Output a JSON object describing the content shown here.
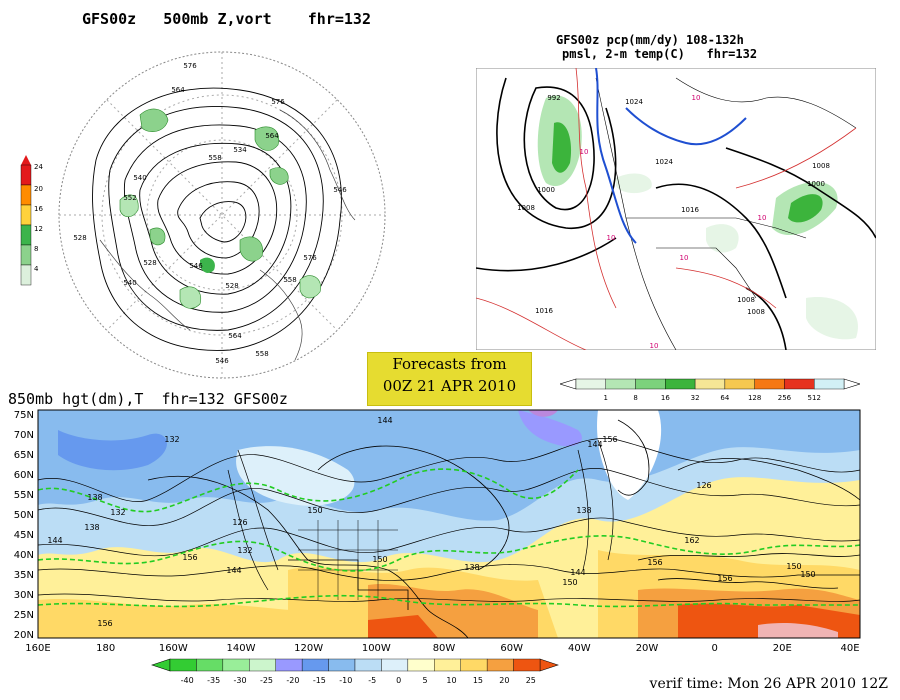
{
  "panels": {
    "polar": {
      "title": "GFS00z   500mb Z,vort    fhr=132",
      "contour_labels": [
        "576",
        "564",
        "540",
        "552",
        "528",
        "534",
        "558",
        "576",
        "564",
        "546",
        "528",
        "540",
        "558",
        "564",
        "558",
        "546",
        "576",
        "528",
        "546"
      ],
      "legend_ticks": [
        "24",
        "20",
        "16",
        "12",
        "8",
        "4"
      ],
      "legend_colors": [
        "#e31a1c",
        "#ff8c00",
        "#ffd23c",
        "#3cb44b",
        "#8cd28c",
        "#dcf0dc"
      ]
    },
    "precip": {
      "title_line1": "GFS00z pcp(mm/dy) 108-132h",
      "title_line2": "pmsl, 2-m temp(C)   fhr=132",
      "pressure_labels": [
        "992",
        "1024",
        "1000",
        "1024",
        "1008",
        "1016",
        "1000",
        "1008",
        "1016",
        "1008",
        "1008"
      ],
      "temp_labels": [
        "10",
        "10",
        "10",
        "10",
        "10",
        "10"
      ],
      "legend_ticks": [
        "1",
        "8",
        "16",
        "32",
        "64",
        "128",
        "256",
        "512"
      ],
      "legend_colors": [
        "#e6f5e6",
        "#b4e6b4",
        "#7cd27c",
        "#3cb43c",
        "#f5e696",
        "#f5c850",
        "#f57814",
        "#e6321e",
        "#d2f0f5"
      ]
    },
    "forecast_box": {
      "line1": "Forecasts from",
      "line2": "00Z 21 APR 2010"
    },
    "bottom": {
      "title": "850mb hgt(dm),T  fhr=132 GFS00z",
      "lat_labels": [
        "75N",
        "70N",
        "65N",
        "60N",
        "55N",
        "50N",
        "45N",
        "40N",
        "35N",
        "30N",
        "25N",
        "20N"
      ],
      "lon_labels": [
        "160E",
        "180",
        "160W",
        "140W",
        "120W",
        "100W",
        "80W",
        "60W",
        "40W",
        "20W",
        "0",
        "20E",
        "40E"
      ],
      "contour_labels": [
        "132",
        "144",
        "138",
        "144",
        "132",
        "138",
        "150",
        "156",
        "126",
        "132",
        "144",
        "150",
        "138",
        "144",
        "156",
        "126",
        "138",
        "144",
        "150",
        "156",
        "162",
        "156",
        "150",
        "150",
        "156"
      ],
      "legend_ticks": [
        "-40",
        "-35",
        "-30",
        "-25",
        "-20",
        "-15",
        "-10",
        "-5",
        "0",
        "5",
        "10",
        "15",
        "20",
        "25"
      ],
      "legend_colors": [
        "#33cc33",
        "#66dd66",
        "#99ee99",
        "#ccf5cc",
        "#9999ff",
        "#6699ee",
        "#88bbee",
        "#bbddf5",
        "#ddf0fa",
        "#ffffcc",
        "#fff099",
        "#ffd966",
        "#f5a040",
        "#ee5511"
      ]
    }
  },
  "verif_time": "verif time: Mon 26 APR 2010 12Z"
}
